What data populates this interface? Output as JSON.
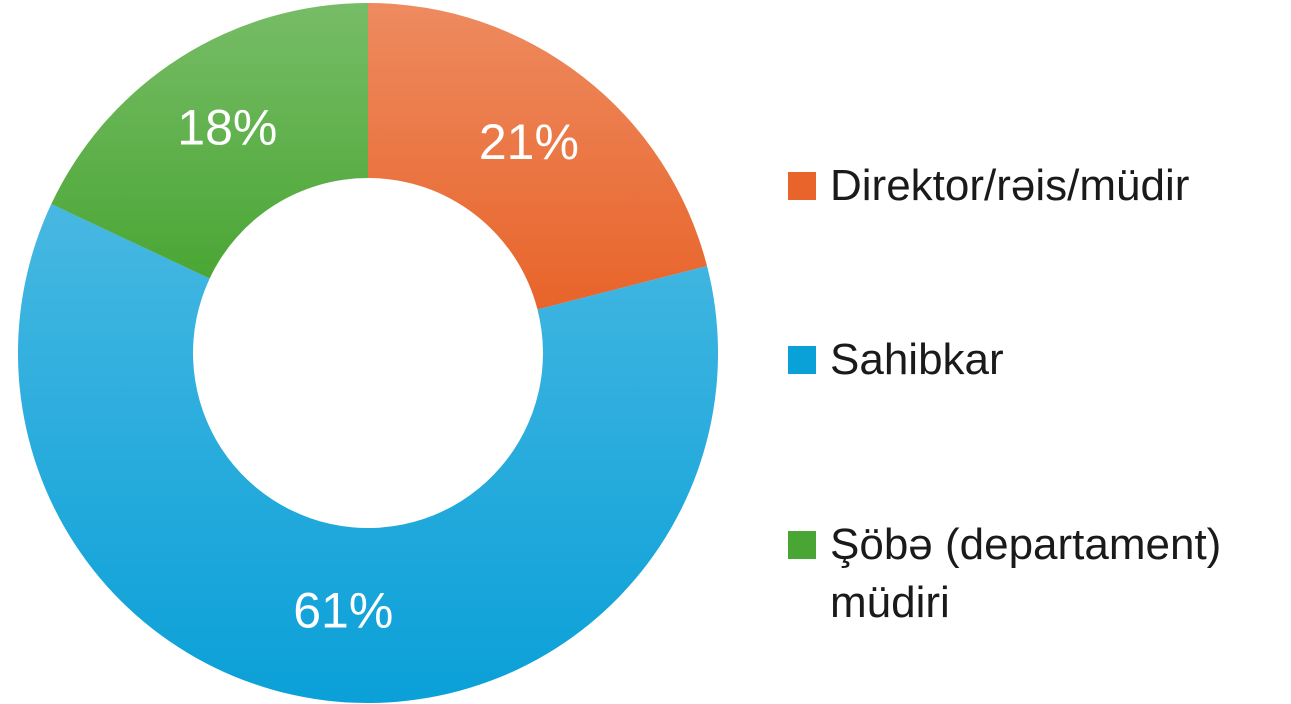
{
  "chart_data": {
    "type": "donut",
    "categories": [
      "Direktor/rəis/müdir",
      "Sahibkar",
      "Şöbə (departament) müdiri"
    ],
    "values": [
      21,
      61,
      18
    ],
    "value_labels": [
      "21%",
      "61%",
      "18%"
    ],
    "colors": [
      "#e8642a",
      "#0aa0d8",
      "#4aa634"
    ],
    "legend": "right"
  }
}
